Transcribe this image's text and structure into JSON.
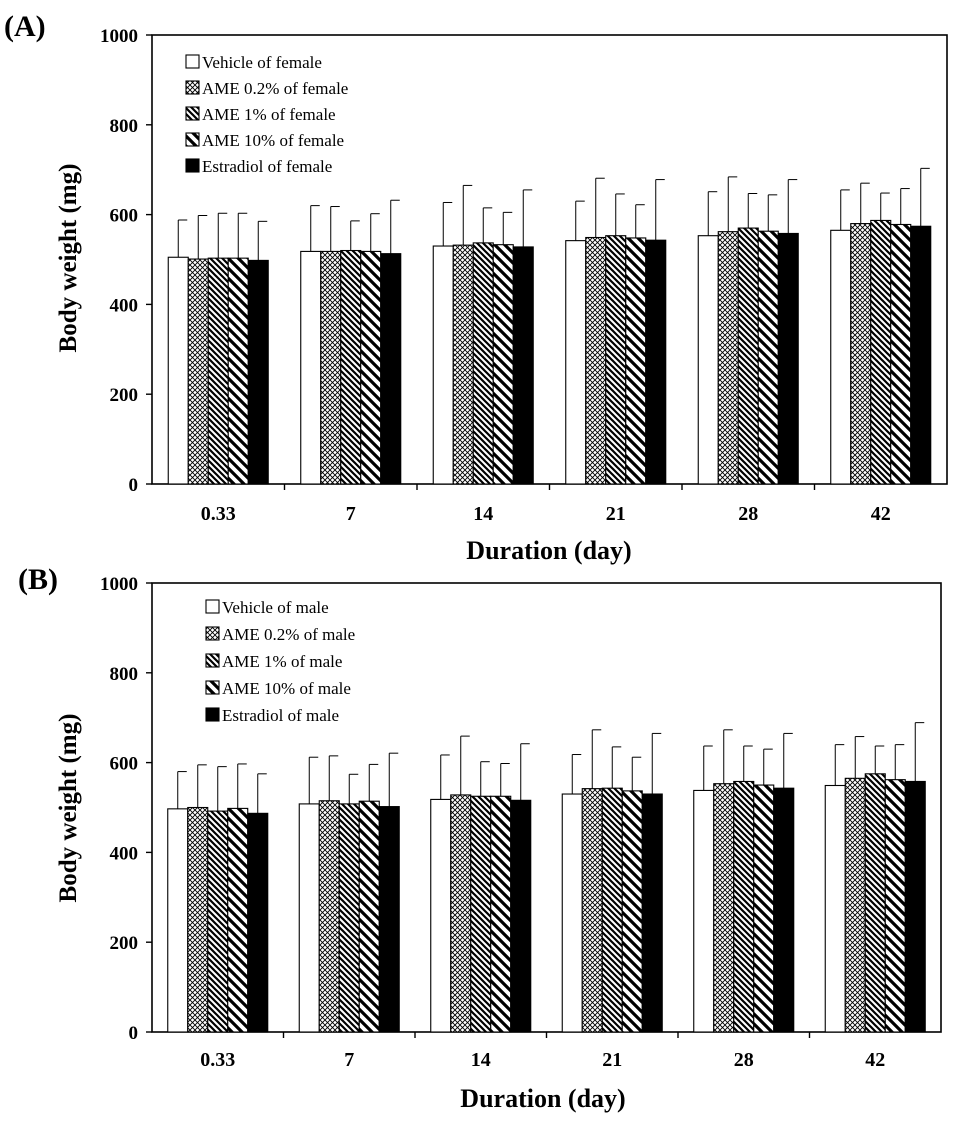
{
  "chart_data": [
    {
      "type": "bar",
      "panel_label": "(A)",
      "xlabel": "Duration (day)",
      "ylabel": "Body weight (mg)",
      "ylim": [
        0,
        1000
      ],
      "yticks": [
        0,
        200,
        400,
        600,
        800,
        1000
      ],
      "categories": [
        "0.33",
        "7",
        "14",
        "21",
        "28",
        "42"
      ],
      "legend_position": "top-left",
      "series": [
        {
          "name": "Vehicle of female",
          "pattern": "white",
          "values": [
            505,
            518,
            530,
            542,
            553,
            565
          ],
          "errors": [
            83,
            102,
            97,
            88,
            98,
            90
          ]
        },
        {
          "name": "AME 0.2% of female",
          "pattern": "crosshatch",
          "values": [
            501,
            518,
            532,
            549,
            562,
            580
          ],
          "errors": [
            97,
            100,
            133,
            132,
            122,
            90
          ]
        },
        {
          "name": "AME 1% of female",
          "pattern": "dense-diagonal",
          "values": [
            503,
            520,
            537,
            553,
            570,
            587
          ],
          "errors": [
            100,
            66,
            78,
            93,
            77,
            61
          ]
        },
        {
          "name": "AME 10% of female",
          "pattern": "wide-diagonal",
          "values": [
            503,
            518,
            533,
            548,
            563,
            578
          ],
          "errors": [
            100,
            84,
            72,
            74,
            81,
            80
          ]
        },
        {
          "name": "Estradiol of female",
          "pattern": "black",
          "values": [
            498,
            513,
            528,
            543,
            558,
            574
          ],
          "errors": [
            87,
            119,
            127,
            135,
            120,
            129
          ]
        }
      ]
    },
    {
      "type": "bar",
      "panel_label": "(B)",
      "xlabel": "Duration (day)",
      "ylabel": "Body weight (mg)",
      "ylim": [
        0,
        1000
      ],
      "yticks": [
        0,
        200,
        400,
        600,
        800,
        1000
      ],
      "categories": [
        "0.33",
        "7",
        "14",
        "21",
        "28",
        "42"
      ],
      "legend_position": "top-left",
      "series": [
        {
          "name": "Vehicle of male",
          "pattern": "white",
          "values": [
            497,
            508,
            518,
            530,
            538,
            549
          ],
          "errors": [
            83,
            104,
            99,
            88,
            99,
            91
          ]
        },
        {
          "name": "AME 0.2% of male",
          "pattern": "crosshatch",
          "values": [
            500,
            515,
            528,
            542,
            553,
            565
          ],
          "errors": [
            95,
            100,
            131,
            131,
            120,
            93
          ]
        },
        {
          "name": "AME 1% of male",
          "pattern": "dense-diagonal",
          "values": [
            492,
            508,
            525,
            543,
            558,
            575
          ],
          "errors": [
            99,
            66,
            77,
            92,
            79,
            62
          ]
        },
        {
          "name": "AME 10% of male",
          "pattern": "wide-diagonal",
          "values": [
            498,
            514,
            525,
            537,
            550,
            562
          ],
          "errors": [
            99,
            82,
            73,
            75,
            80,
            78
          ]
        },
        {
          "name": "Estradiol of male",
          "pattern": "black",
          "values": [
            487,
            502,
            516,
            530,
            543,
            558
          ],
          "errors": [
            88,
            119,
            126,
            135,
            122,
            131
          ]
        }
      ]
    }
  ]
}
